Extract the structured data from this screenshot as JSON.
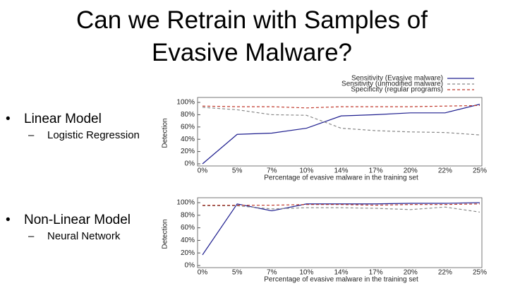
{
  "slide": {
    "title_lines": [
      "Can we Retrain with Samples of",
      "Evasive Malware?"
    ],
    "bullets": [
      {
        "text": "Linear Model",
        "sub": "Logistic Regression"
      },
      {
        "text": "Non-Linear Model",
        "sub": "Neural Network"
      }
    ]
  },
  "chart_data": [
    {
      "type": "line",
      "xlabel": "Percentage of evasive malware in the training set",
      "ylabel": "Detection",
      "categories": [
        "0%",
        "5%",
        "7%",
        "10%",
        "14%",
        "17%",
        "20%",
        "22%",
        "25%"
      ],
      "ylim": [
        0,
        100
      ],
      "yticks": [
        {
          "value": 0,
          "label": "0%"
        },
        {
          "value": 20,
          "label": "20%"
        },
        {
          "value": 40,
          "label": "40%"
        },
        {
          "value": 60,
          "label": "60%"
        },
        {
          "value": 80,
          "label": "80%"
        },
        {
          "value": 100,
          "label": "100%"
        }
      ],
      "legend": "top-right",
      "series": [
        {
          "name": "Sensitivity (Evasive malware)",
          "color": "#1f1f8f",
          "dash": "solid",
          "values": [
            0,
            48,
            50,
            58,
            78,
            80,
            83,
            83,
            97
          ]
        },
        {
          "name": "Sensitivity (unmodified malware)",
          "color": "#888888",
          "dash": "dashed",
          "values": [
            92,
            88,
            80,
            79,
            58,
            54,
            52,
            51,
            47
          ]
        },
        {
          "name": "Specificity (regular programs)",
          "color": "#c0392b",
          "dash": "dashed",
          "values": [
            94,
            93,
            93,
            91,
            93,
            93,
            93,
            94,
            95
          ]
        }
      ]
    },
    {
      "type": "line",
      "xlabel": "Percentage of evasive malware in the training set",
      "ylabel": "Detection",
      "categories": [
        "0%",
        "5%",
        "7%",
        "10%",
        "14%",
        "17%",
        "20%",
        "22%",
        "25%"
      ],
      "ylim": [
        0,
        100
      ],
      "yticks": [
        {
          "value": 0,
          "label": "0%"
        },
        {
          "value": 20,
          "label": "20%"
        },
        {
          "value": 40,
          "label": "40%"
        },
        {
          "value": 60,
          "label": "60%"
        },
        {
          "value": 80,
          "label": "80%"
        },
        {
          "value": 100,
          "label": "100%"
        }
      ],
      "series": [
        {
          "color": "#1f1f8f",
          "dash": "solid",
          "values": [
            17,
            98,
            87,
            98,
            98,
            98,
            99,
            99,
            100
          ]
        },
        {
          "color": "#888888",
          "dash": "dashed",
          "values": [
            95,
            95,
            90,
            92,
            92,
            91,
            89,
            93,
            85
          ]
        },
        {
          "color": "#c0392b",
          "dash": "dashed",
          "values": [
            96,
            96,
            96,
            97,
            97,
            96,
            97,
            97,
            98
          ]
        }
      ]
    }
  ]
}
